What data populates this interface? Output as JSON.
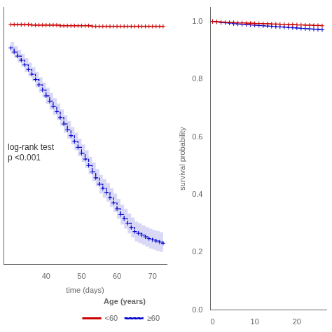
{
  "chart_data": [
    {
      "type": "step",
      "xlabel": "time (days)",
      "legend_title": "Age (years)",
      "annotations": [
        "log-rank test\np <0.001"
      ],
      "x": [
        30,
        31,
        32,
        33,
        34,
        35,
        36,
        37,
        38,
        39,
        40,
        41,
        42,
        43,
        44,
        45,
        46,
        47,
        48,
        49,
        50,
        51,
        52,
        53,
        54,
        55,
        56,
        57,
        58,
        59,
        60,
        61,
        62,
        63,
        64,
        65,
        66,
        67,
        68,
        69,
        70,
        71,
        72,
        73
      ],
      "series": [
        {
          "name": "<60",
          "color": "#cc0000",
          "line_style": "solid",
          "marker": "plus",
          "values": [
            0.99,
            0.99,
            0.99,
            0.99,
            0.99,
            0.99,
            0.989,
            0.989,
            0.989,
            0.989,
            0.989,
            0.989,
            0.989,
            0.989,
            0.988,
            0.988,
            0.988,
            0.988,
            0.988,
            0.988,
            0.988,
            0.988,
            0.988,
            0.987,
            0.987,
            0.987,
            0.987,
            0.987,
            0.987,
            0.987,
            0.987,
            0.987,
            0.987,
            0.987,
            0.987,
            0.987,
            0.987,
            0.987,
            0.987,
            0.987,
            0.987,
            0.987,
            0.987,
            0.987
          ],
          "ci_upper": [
            0.992,
            0.992,
            0.992,
            0.992,
            0.992,
            0.992,
            0.991,
            0.991,
            0.991,
            0.991,
            0.991,
            0.991,
            0.991,
            0.991,
            0.99,
            0.99,
            0.99,
            0.99,
            0.99,
            0.99,
            0.99,
            0.99,
            0.99,
            0.989,
            0.989,
            0.989,
            0.989,
            0.989,
            0.989,
            0.989,
            0.989,
            0.989,
            0.989,
            0.989,
            0.989,
            0.989,
            0.989,
            0.989,
            0.989,
            0.989,
            0.989,
            0.989,
            0.989,
            0.989
          ],
          "ci_lower": [
            0.988,
            0.988,
            0.988,
            0.988,
            0.988,
            0.988,
            0.987,
            0.987,
            0.987,
            0.987,
            0.987,
            0.987,
            0.987,
            0.987,
            0.986,
            0.986,
            0.986,
            0.986,
            0.986,
            0.986,
            0.986,
            0.986,
            0.986,
            0.985,
            0.985,
            0.985,
            0.985,
            0.985,
            0.985,
            0.985,
            0.985,
            0.985,
            0.985,
            0.985,
            0.985,
            0.985,
            0.985,
            0.985,
            0.985,
            0.985,
            0.985,
            0.985,
            0.985,
            0.985
          ]
        },
        {
          "name": "≥60",
          "color": "#0000cc",
          "line_style": "dashed",
          "marker": "plus",
          "values": [
            0.95,
            0.943,
            0.936,
            0.929,
            0.921,
            0.913,
            0.905,
            0.896,
            0.887,
            0.878,
            0.868,
            0.859,
            0.85,
            0.841,
            0.831,
            0.82,
            0.81,
            0.8,
            0.79,
            0.78,
            0.77,
            0.76,
            0.749,
            0.738,
            0.728,
            0.717,
            0.71,
            0.703,
            0.694,
            0.685,
            0.675,
            0.665,
            0.658,
            0.65,
            0.643,
            0.636,
            0.633,
            0.63,
            0.627,
            0.624,
            0.622,
            0.62,
            0.618,
            0.616
          ],
          "ci_upper": [
            0.96,
            0.953,
            0.947,
            0.94,
            0.933,
            0.925,
            0.917,
            0.909,
            0.9,
            0.891,
            0.882,
            0.873,
            0.864,
            0.855,
            0.845,
            0.835,
            0.825,
            0.815,
            0.805,
            0.795,
            0.785,
            0.775,
            0.764,
            0.754,
            0.743,
            0.733,
            0.726,
            0.719,
            0.71,
            0.701,
            0.692,
            0.682,
            0.675,
            0.667,
            0.66,
            0.653,
            0.65,
            0.647,
            0.644,
            0.641,
            0.639,
            0.637,
            0.635,
            0.633
          ],
          "ci_lower": [
            0.94,
            0.933,
            0.925,
            0.918,
            0.909,
            0.901,
            0.893,
            0.883,
            0.874,
            0.865,
            0.854,
            0.845,
            0.836,
            0.827,
            0.817,
            0.805,
            0.795,
            0.785,
            0.775,
            0.765,
            0.755,
            0.745,
            0.734,
            0.722,
            0.713,
            0.701,
            0.694,
            0.687,
            0.678,
            0.669,
            0.658,
            0.648,
            0.641,
            0.633,
            0.626,
            0.619,
            0.616,
            0.613,
            0.61,
            0.607,
            0.605,
            0.603,
            0.601,
            0.599
          ]
        }
      ],
      "xlim": [
        28,
        74
      ],
      "xticks": [
        40,
        50,
        60,
        70
      ],
      "ylim": [
        0.58,
        1.02
      ],
      "tick_labels": "x",
      "grid": false,
      "legend": "bottom"
    },
    {
      "type": "step",
      "ylabel": "survival probability",
      "x": [
        0,
        1,
        2,
        3,
        4,
        5,
        6,
        7,
        8,
        9,
        10,
        11,
        12,
        13,
        14,
        15,
        16,
        17,
        18,
        19,
        20,
        21,
        22,
        23,
        24,
        25,
        26
      ],
      "series": [
        {
          "color": "#cc0000",
          "line_style": "solid",
          "marker": "plus",
          "values": [
            1.0,
            0.999,
            0.998,
            0.997,
            0.997,
            0.996,
            0.995,
            0.995,
            0.994,
            0.994,
            0.993,
            0.993,
            0.992,
            0.992,
            0.991,
            0.991,
            0.99,
            0.99,
            0.989,
            0.989,
            0.988,
            0.988,
            0.987,
            0.987,
            0.986,
            0.986,
            0.985
          ],
          "ci_upper": [
            1.0,
            1.0,
            0.999,
            0.998,
            0.998,
            0.997,
            0.997,
            0.996,
            0.996,
            0.995,
            0.995,
            0.994,
            0.994,
            0.993,
            0.993,
            0.992,
            0.992,
            0.991,
            0.991,
            0.99,
            0.99,
            0.99,
            0.989,
            0.989,
            0.988,
            0.988,
            0.987
          ],
          "ci_lower": [
            1.0,
            0.998,
            0.997,
            0.996,
            0.996,
            0.995,
            0.994,
            0.993,
            0.993,
            0.992,
            0.991,
            0.991,
            0.99,
            0.99,
            0.989,
            0.989,
            0.988,
            0.988,
            0.987,
            0.987,
            0.986,
            0.986,
            0.985,
            0.985,
            0.984,
            0.984,
            0.983
          ]
        },
        {
          "color": "#0000cc",
          "line_style": "dashed",
          "marker": "plus",
          "values": [
            1.0,
            0.998,
            0.996,
            0.995,
            0.994,
            0.992,
            0.991,
            0.99,
            0.989,
            0.988,
            0.987,
            0.986,
            0.985,
            0.984,
            0.983,
            0.982,
            0.981,
            0.98,
            0.979,
            0.978,
            0.977,
            0.976,
            0.975,
            0.974,
            0.973,
            0.972,
            0.971
          ],
          "ci_upper": [
            1.0,
            0.999,
            0.997,
            0.996,
            0.995,
            0.994,
            0.993,
            0.992,
            0.991,
            0.99,
            0.989,
            0.988,
            0.987,
            0.986,
            0.985,
            0.984,
            0.983,
            0.982,
            0.981,
            0.98,
            0.979,
            0.978,
            0.977,
            0.976,
            0.975,
            0.974,
            0.973
          ],
          "ci_lower": [
            1.0,
            0.997,
            0.995,
            0.994,
            0.993,
            0.991,
            0.989,
            0.988,
            0.987,
            0.986,
            0.985,
            0.984,
            0.983,
            0.982,
            0.981,
            0.98,
            0.979,
            0.978,
            0.977,
            0.976,
            0.975,
            0.974,
            0.973,
            0.972,
            0.971,
            0.97,
            0.969
          ]
        }
      ],
      "xlim": [
        -0.5,
        27
      ],
      "xticks": [
        0,
        10,
        20
      ],
      "ylim": [
        0.0,
        1.05
      ],
      "yticks": [
        {
          "value": 0.0,
          "label": "0.0"
        },
        0.2,
        0.4,
        0.6,
        0.8,
        {
          "value": 1.0,
          "label": "1.0"
        }
      ],
      "grid": false
    }
  ]
}
